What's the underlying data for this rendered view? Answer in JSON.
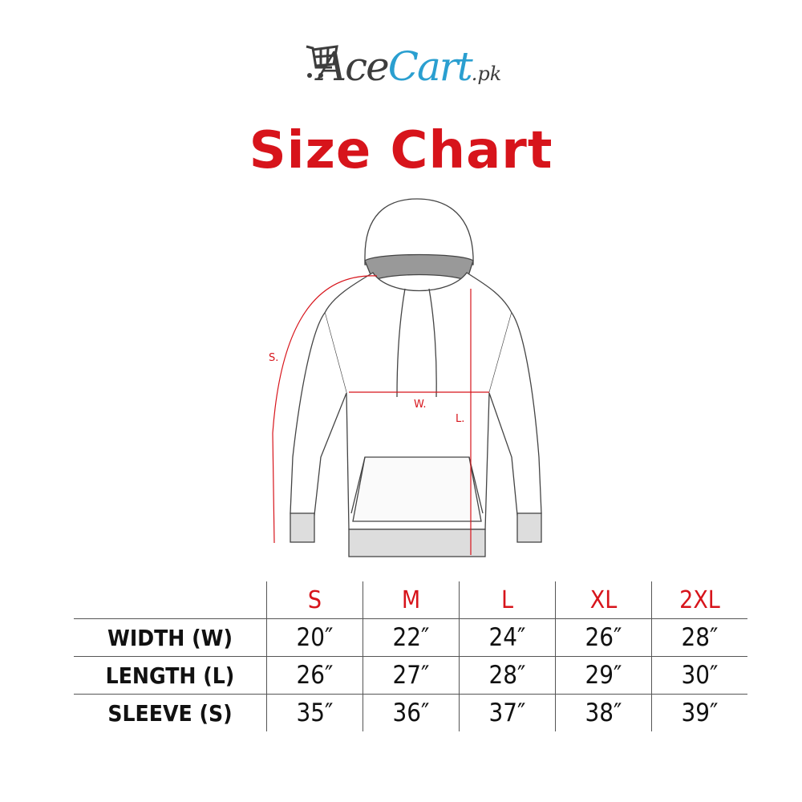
{
  "logo": {
    "part1": "Ace",
    "part2": "Cart",
    "suffix": ".pk",
    "icon": "shopping-cart-icon",
    "colors": {
      "dark": "#3d3d3d",
      "blue": "#2a9fd0"
    }
  },
  "title": "Size Chart",
  "diagram": {
    "labels": {
      "sleeve": "S.",
      "width": "W.",
      "length": "L."
    },
    "accent": "#d7141b"
  },
  "table": {
    "sizes": [
      "S",
      "M",
      "L",
      "XL",
      "2XL"
    ],
    "rows": [
      {
        "label": "WIDTH (W)",
        "values": [
          "20″",
          "22″",
          "24″",
          "26″",
          "28″"
        ]
      },
      {
        "label": "LENGTH (L)",
        "values": [
          "26″",
          "27″",
          "28″",
          "29″",
          "30″"
        ]
      },
      {
        "label": "SLEEVE (S)",
        "values": [
          "35″",
          "36″",
          "37″",
          "38″",
          "39″"
        ]
      }
    ]
  }
}
